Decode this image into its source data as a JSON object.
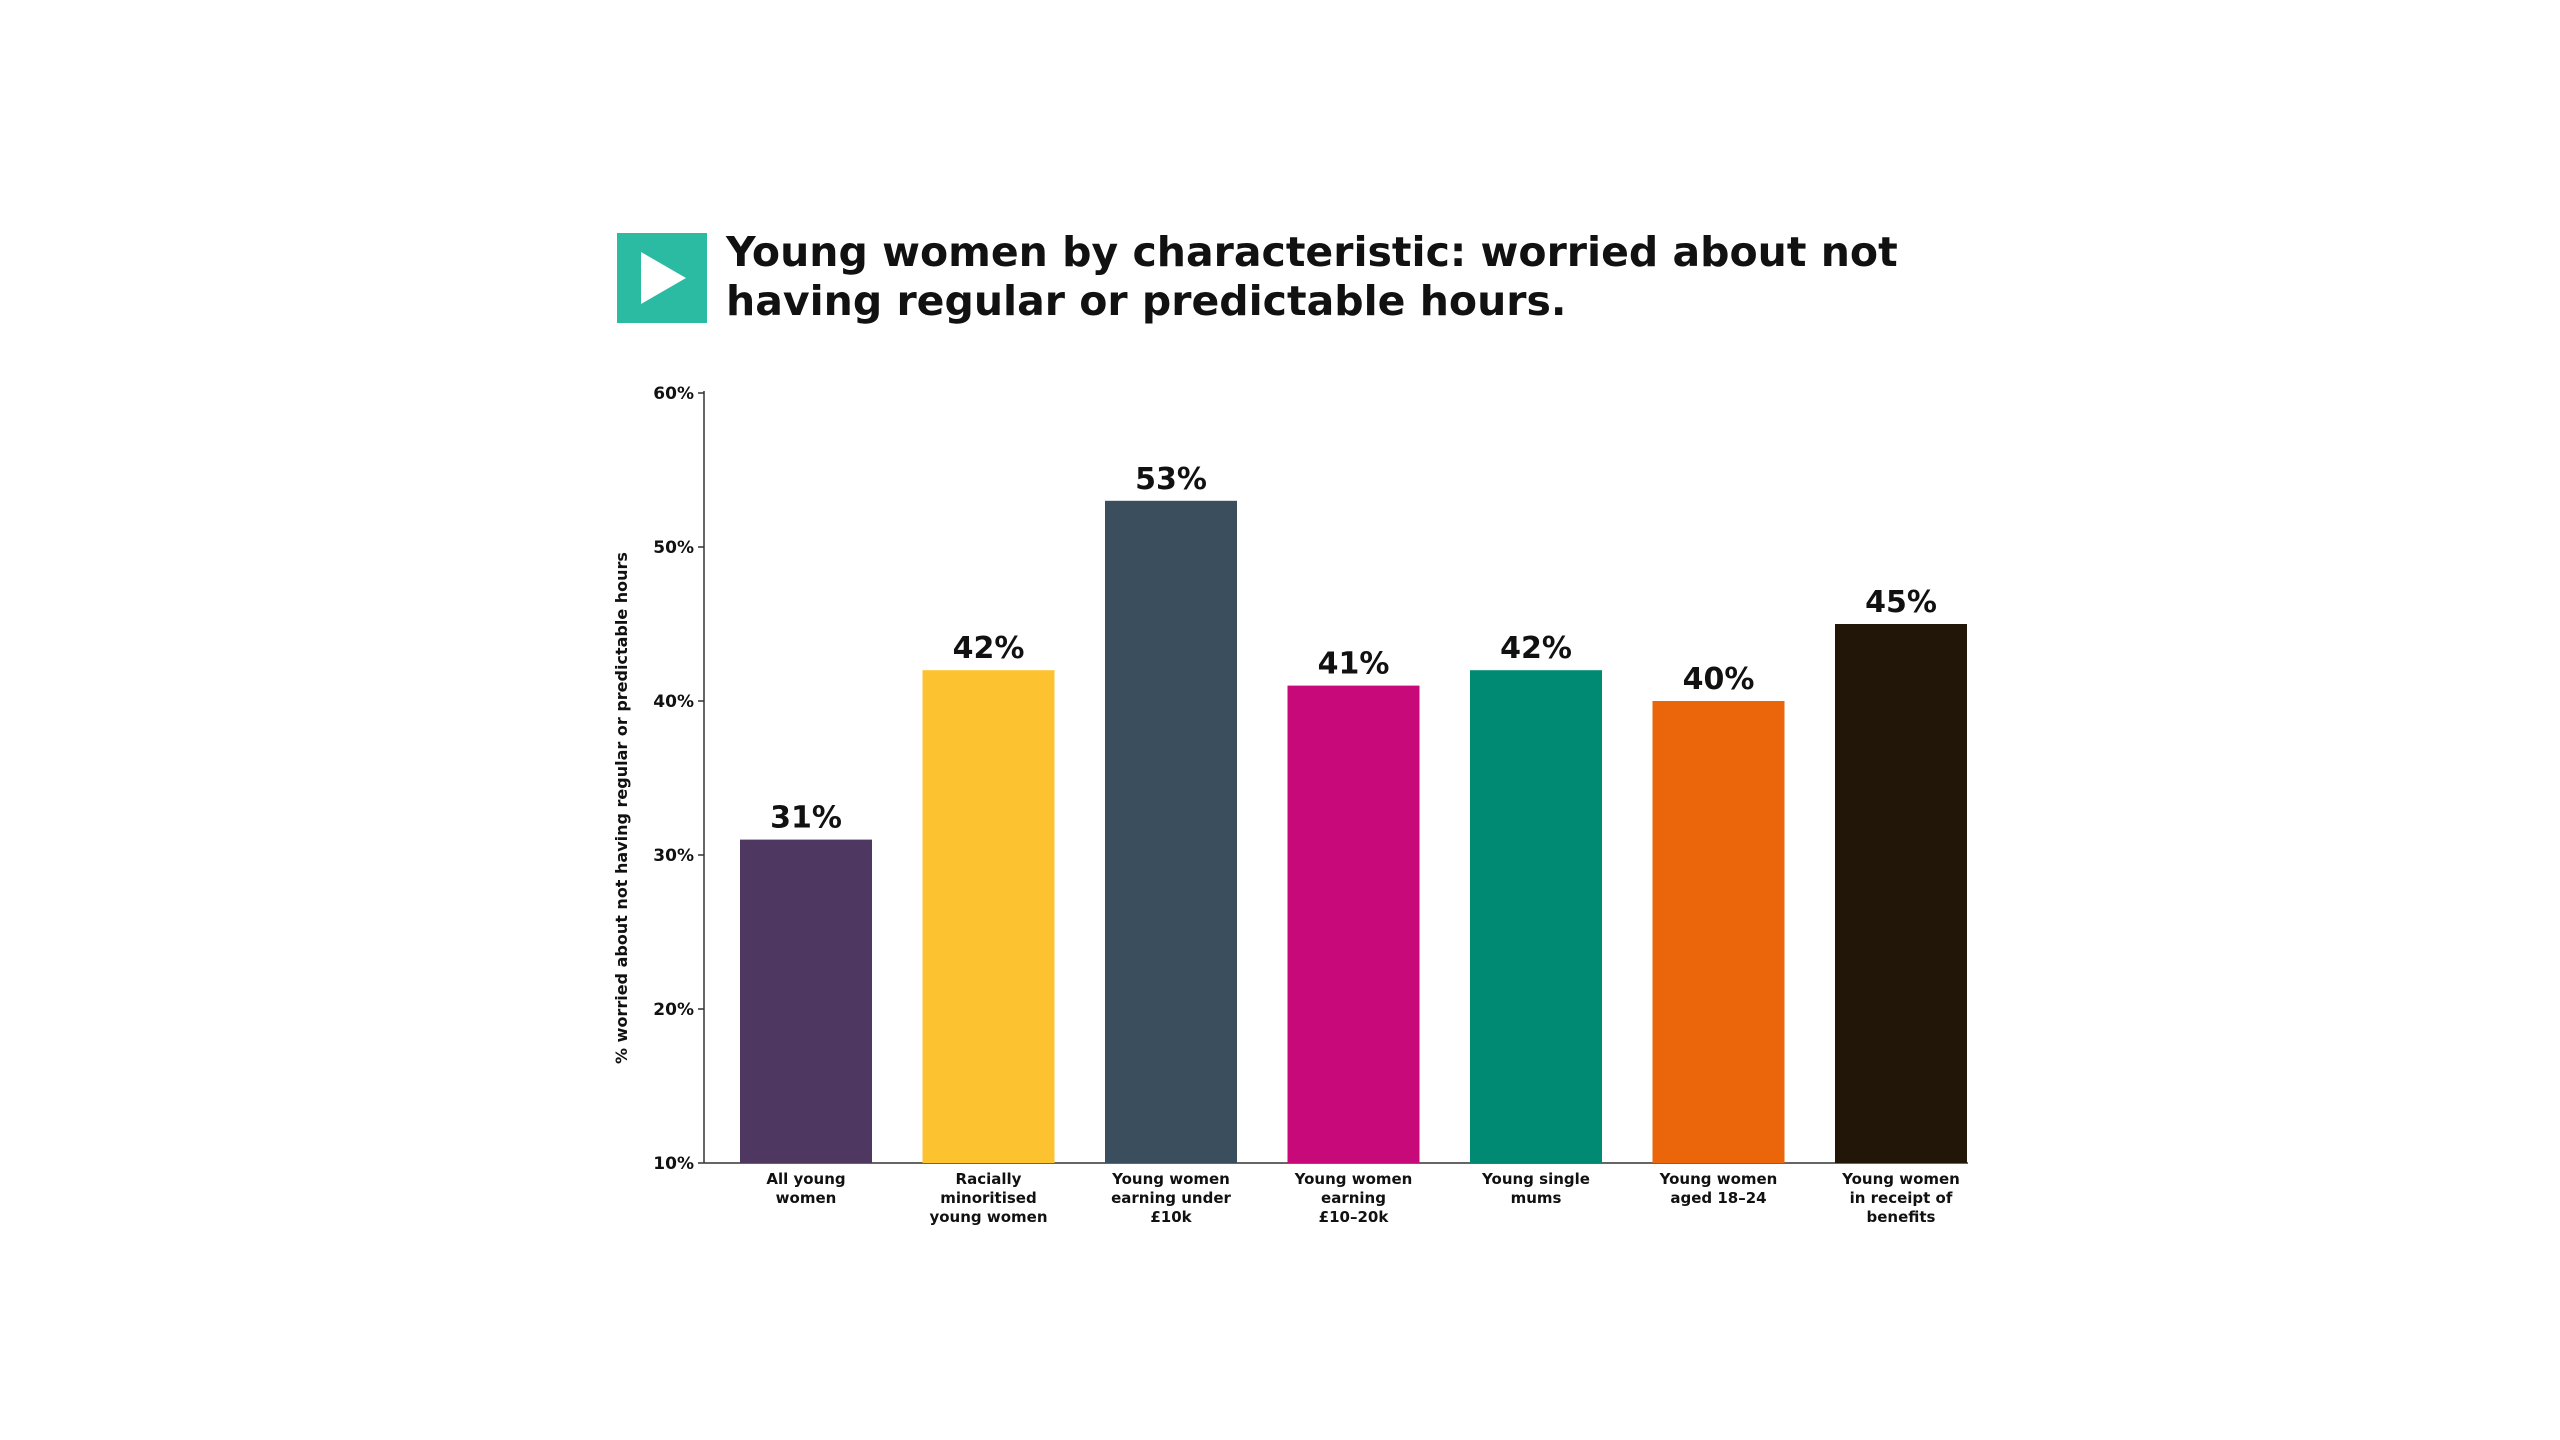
{
  "chart_data": {
    "type": "bar",
    "title": "Young women by characteristic: worried about not having regular or predictable hours.",
    "ylabel": "% worried about not having regular or predictable hours",
    "xlabel": "",
    "ylim": [
      10,
      60
    ],
    "yticks": [
      "10%",
      "20%",
      "30%",
      "40%",
      "50%",
      "60%"
    ],
    "ytick_values": [
      10,
      20,
      30,
      40,
      50,
      60
    ],
    "grid": false,
    "categories": [
      [
        "All young",
        "women"
      ],
      [
        "Racially",
        "minoritised",
        "young women"
      ],
      [
        "Young women",
        "earning under",
        "£10k"
      ],
      [
        "Young women",
        "earning",
        "£10–20k"
      ],
      [
        "Young single",
        "mums"
      ],
      [
        "Young women",
        "aged 18–24"
      ],
      [
        "Young women",
        "in receipt of",
        "benefits"
      ]
    ],
    "values": [
      31,
      42,
      53,
      41,
      42,
      40,
      45
    ],
    "value_labels": [
      "31%",
      "42%",
      "53%",
      "41%",
      "42%",
      "40%",
      "45%"
    ],
    "colors": [
      "#4E3862",
      "#FDC230",
      "#3A4E5E",
      "#C8097A",
      "#008A73",
      "#EB650B",
      "#221608"
    ]
  },
  "logo": {
    "color": "#2BBBA3",
    "icon": "play-icon"
  }
}
